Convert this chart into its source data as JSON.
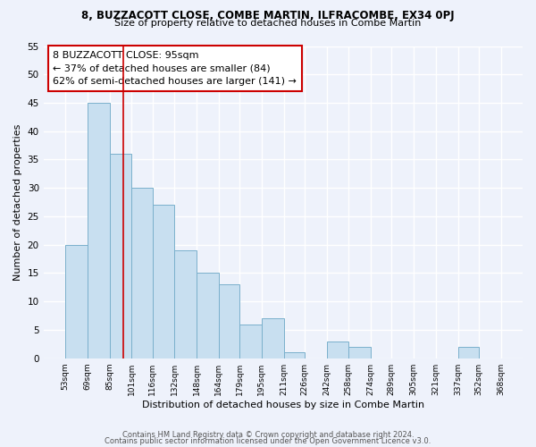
{
  "title1": "8, BUZZACOTT CLOSE, COMBE MARTIN, ILFRACOMBE, EX34 0PJ",
  "title2": "Size of property relative to detached houses in Combe Martin",
  "xlabel": "Distribution of detached houses by size in Combe Martin",
  "ylabel": "Number of detached properties",
  "bin_edges": [
    53,
    69,
    85,
    101,
    116,
    132,
    148,
    164,
    179,
    195,
    211,
    226,
    242,
    258,
    274,
    289,
    305,
    321,
    337,
    352,
    368
  ],
  "bar_heights": [
    20,
    45,
    36,
    30,
    27,
    19,
    15,
    13,
    6,
    7,
    1,
    0,
    3,
    2,
    0,
    0,
    0,
    0,
    2,
    0
  ],
  "bar_color": "#c8dff0",
  "bar_edge_color": "#7ab0cc",
  "vline_x": 95,
  "vline_color": "#cc0000",
  "annotation_text_line1": "8 BUZZACOTT CLOSE: 95sqm",
  "annotation_text_line2": "← 37% of detached houses are smaller (84)",
  "annotation_text_line3": "62% of semi-detached houses are larger (141) →",
  "ylim": [
    0,
    55
  ],
  "yticks": [
    0,
    5,
    10,
    15,
    20,
    25,
    30,
    35,
    40,
    45,
    50,
    55
  ],
  "tick_labels": [
    "53sqm",
    "69sqm",
    "85sqm",
    "101sqm",
    "116sqm",
    "132sqm",
    "148sqm",
    "164sqm",
    "179sqm",
    "195sqm",
    "211sqm",
    "226sqm",
    "242sqm",
    "258sqm",
    "274sqm",
    "289sqm",
    "305sqm",
    "321sqm",
    "337sqm",
    "352sqm",
    "368sqm"
  ],
  "footer_line1": "Contains HM Land Registry data © Crown copyright and database right 2024.",
  "footer_line2": "Contains public sector information licensed under the Open Government Licence v3.0.",
  "background_color": "#eef2fb",
  "grid_color": "#ffffff"
}
